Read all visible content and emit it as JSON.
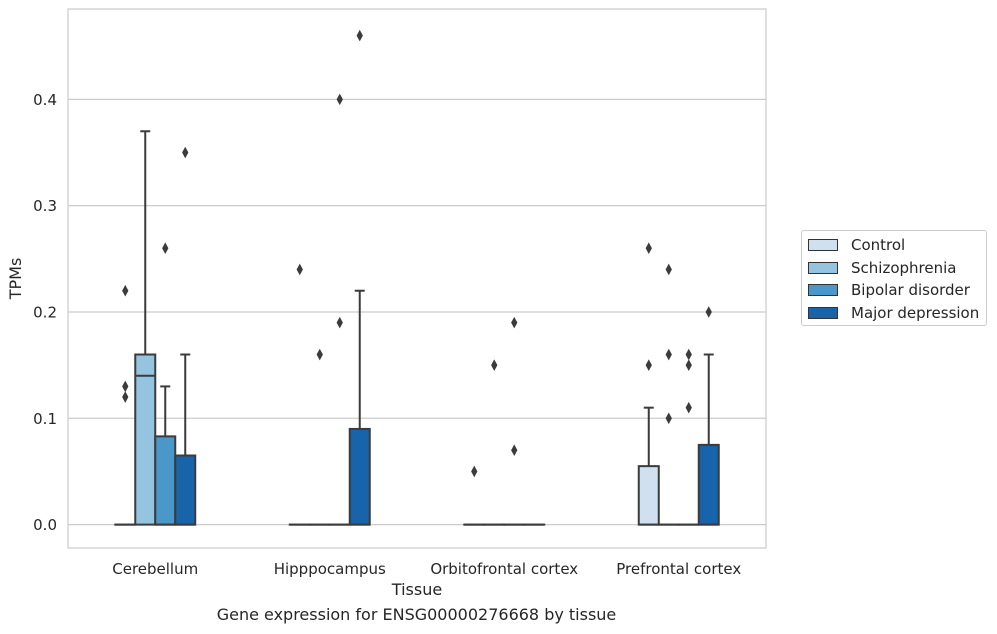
{
  "chart_data": {
    "type": "box",
    "caption": "Gene expression for ENSG00000276668 by tissue",
    "xlabel": "Tissue",
    "ylabel": "TPMs",
    "ylim": [
      -0.022,
      0.485
    ],
    "yticks": [
      0.0,
      0.1,
      0.2,
      0.3,
      0.4
    ],
    "ytick_labels": [
      "0.0",
      "0.1",
      "0.2",
      "0.3",
      "0.4"
    ],
    "grid": "horizontal",
    "legend_position": "right",
    "categories": [
      "Cerebellum",
      "Hipppocampus",
      "Orbitofrontal cortex",
      "Prefrontal cortex"
    ],
    "series": [
      {
        "name": "Control",
        "color": "#d0e0f0",
        "boxes": [
          {
            "q1": 0.0,
            "median": 0.0,
            "q3": 0.0,
            "whisker_low": 0.0,
            "whisker_high": 0.0,
            "outliers": [
              0.12,
              0.13,
              0.22
            ]
          },
          {
            "q1": 0.0,
            "median": 0.0,
            "q3": 0.0,
            "whisker_low": 0.0,
            "whisker_high": 0.0,
            "outliers": [
              0.24
            ]
          },
          {
            "q1": 0.0,
            "median": 0.0,
            "q3": 0.0,
            "whisker_low": 0.0,
            "whisker_high": 0.0,
            "outliers": [
              0.05
            ]
          },
          {
            "q1": 0.0,
            "median": 0.0,
            "q3": 0.055,
            "whisker_low": 0.0,
            "whisker_high": 0.11,
            "outliers": [
              0.15,
              0.26
            ]
          }
        ]
      },
      {
        "name": "Schizophrenia",
        "color": "#94c4df",
        "boxes": [
          {
            "q1": 0.0,
            "median": 0.14,
            "q3": 0.16,
            "whisker_low": 0.0,
            "whisker_high": 0.37,
            "outliers": []
          },
          {
            "q1": 0.0,
            "median": 0.0,
            "q3": 0.0,
            "whisker_low": 0.0,
            "whisker_high": 0.0,
            "outliers": [
              0.16
            ]
          },
          {
            "q1": 0.0,
            "median": 0.0,
            "q3": 0.0,
            "whisker_low": 0.0,
            "whisker_high": 0.0,
            "outliers": [
              0.15
            ]
          },
          {
            "q1": 0.0,
            "median": 0.0,
            "q3": 0.0,
            "whisker_low": 0.0,
            "whisker_high": 0.0,
            "outliers": [
              0.1,
              0.16,
              0.24
            ]
          }
        ]
      },
      {
        "name": "Bipolar disorder",
        "color": "#4a98c9",
        "boxes": [
          {
            "q1": 0.0,
            "median": 0.0,
            "q3": 0.083,
            "whisker_low": 0.0,
            "whisker_high": 0.13,
            "outliers": [
              0.26
            ]
          },
          {
            "q1": 0.0,
            "median": 0.0,
            "q3": 0.0,
            "whisker_low": 0.0,
            "whisker_high": 0.0,
            "outliers": [
              0.19,
              0.4
            ]
          },
          {
            "q1": 0.0,
            "median": 0.0,
            "q3": 0.0,
            "whisker_low": 0.0,
            "whisker_high": 0.0,
            "outliers": [
              0.07,
              0.19
            ]
          },
          {
            "q1": 0.0,
            "median": 0.0,
            "q3": 0.0,
            "whisker_low": 0.0,
            "whisker_high": 0.0,
            "outliers": [
              0.11,
              0.15,
              0.16
            ]
          }
        ]
      },
      {
        "name": "Major depression",
        "color": "#1764ab",
        "boxes": [
          {
            "q1": 0.0,
            "median": 0.0,
            "q3": 0.065,
            "whisker_low": 0.0,
            "whisker_high": 0.16,
            "outliers": [
              0.35
            ]
          },
          {
            "q1": 0.0,
            "median": 0.0,
            "q3": 0.09,
            "whisker_low": 0.0,
            "whisker_high": 0.22,
            "outliers": [
              0.46
            ]
          },
          {
            "q1": 0.0,
            "median": 0.0,
            "q3": 0.0,
            "whisker_low": 0.0,
            "whisker_high": 0.0,
            "outliers": []
          },
          {
            "q1": 0.0,
            "median": 0.0,
            "q3": 0.075,
            "whisker_low": 0.0,
            "whisker_high": 0.16,
            "outliers": [
              0.2
            ]
          }
        ]
      }
    ]
  }
}
